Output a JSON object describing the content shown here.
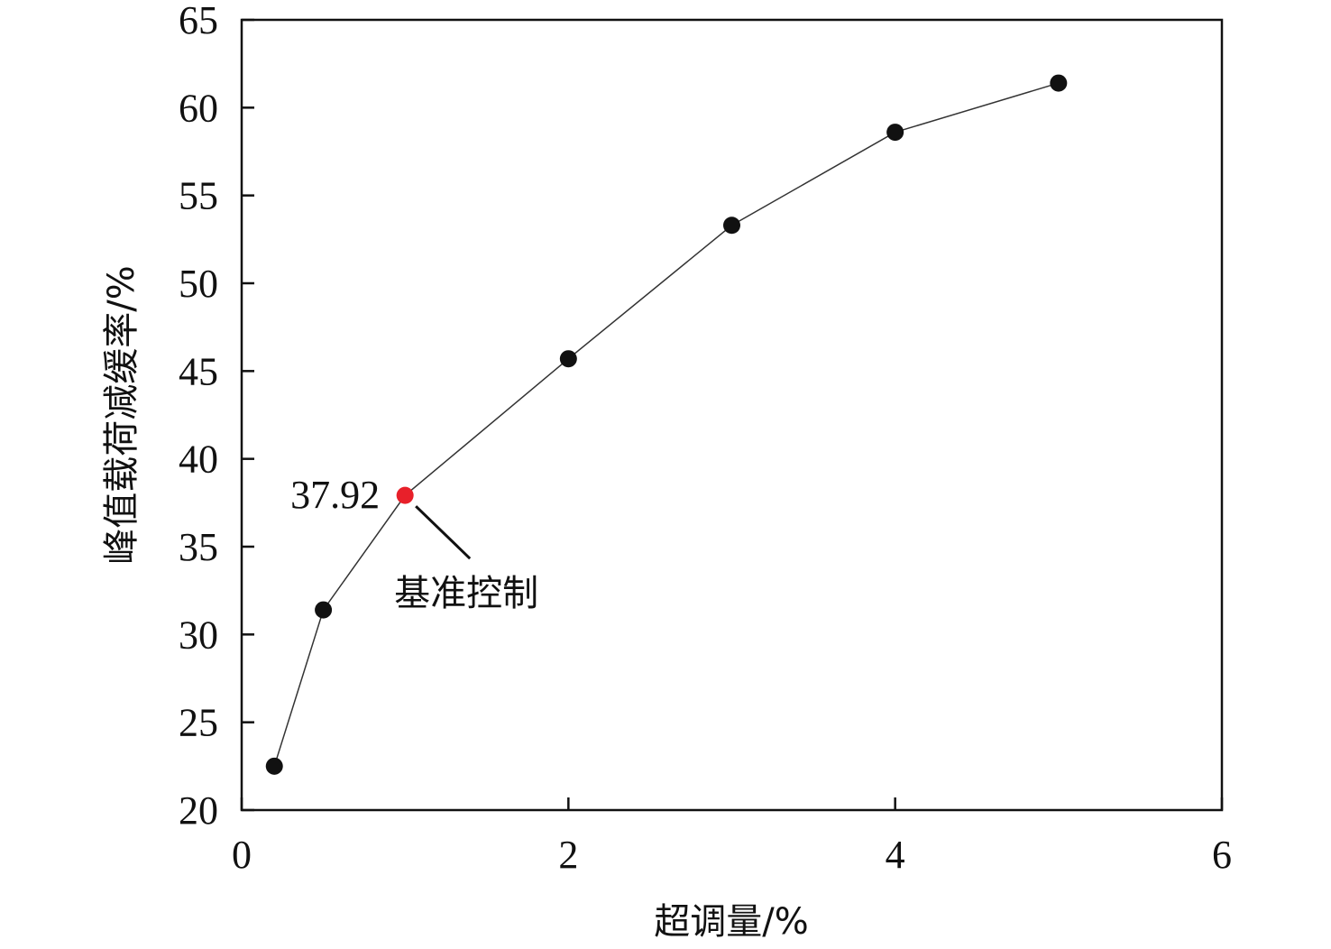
{
  "chart_data": {
    "type": "scatter",
    "title": "",
    "xlabel": "超调量/%",
    "ylabel": "峰值载荷减缓率/%",
    "xlim": [
      0,
      6
    ],
    "ylim": [
      20,
      65
    ],
    "x_ticks": [
      0,
      2,
      4,
      6
    ],
    "y_ticks": [
      20,
      25,
      30,
      35,
      40,
      45,
      50,
      55,
      60,
      65
    ],
    "grid": false,
    "legend": "none",
    "series": [
      {
        "x": [
          0.2,
          0.5,
          1.0,
          2.0,
          3.0,
          4.0,
          5.0
        ],
        "y": [
          22.5,
          31.4,
          37.92,
          45.7,
          53.3,
          58.6,
          61.4
        ],
        "marker_color": "#111111",
        "line_color": "#333333"
      }
    ],
    "highlight": {
      "x": 1.0,
      "y": 37.92,
      "color": "#e8202a",
      "value_label": "37.92",
      "callout_label": "基准控制"
    }
  }
}
